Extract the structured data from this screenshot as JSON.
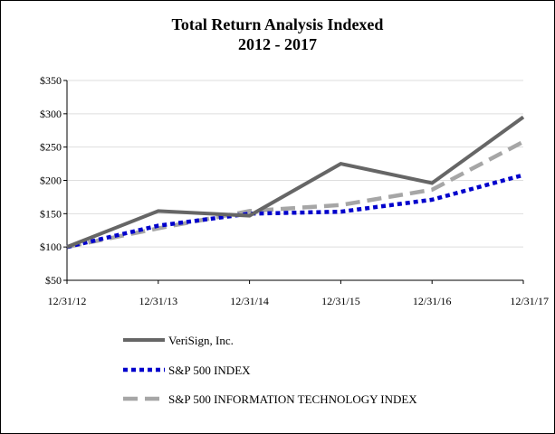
{
  "chart_data": {
    "type": "line",
    "title": "Total Return Analysis Indexed",
    "subtitle": "2012 - 2017",
    "categories": [
      "12/31/12",
      "12/31/13",
      "12/31/14",
      "12/31/15",
      "12/31/16",
      "12/31/17"
    ],
    "y_ticks": [
      "$50",
      "$100",
      "$150",
      "$200",
      "$250",
      "$300",
      "$350"
    ],
    "ylim": [
      50,
      350
    ],
    "grid": true,
    "legend_position": "bottom-left",
    "series": [
      {
        "name": "VeriSign, Inc.",
        "values": [
          100,
          154,
          147,
          225,
          196,
          295
        ],
        "color": "#666666",
        "style": "solid"
      },
      {
        "name": "S&P 500 INDEX",
        "values": [
          100,
          132,
          150,
          153,
          171,
          208
        ],
        "color": "#0000cc",
        "style": "dotted"
      },
      {
        "name": "S&P 500 INFORMATION TECHNOLOGY INDEX",
        "values": [
          100,
          128,
          154,
          163,
          186,
          258
        ],
        "color": "#a6a6a6",
        "style": "dashed"
      }
    ]
  }
}
